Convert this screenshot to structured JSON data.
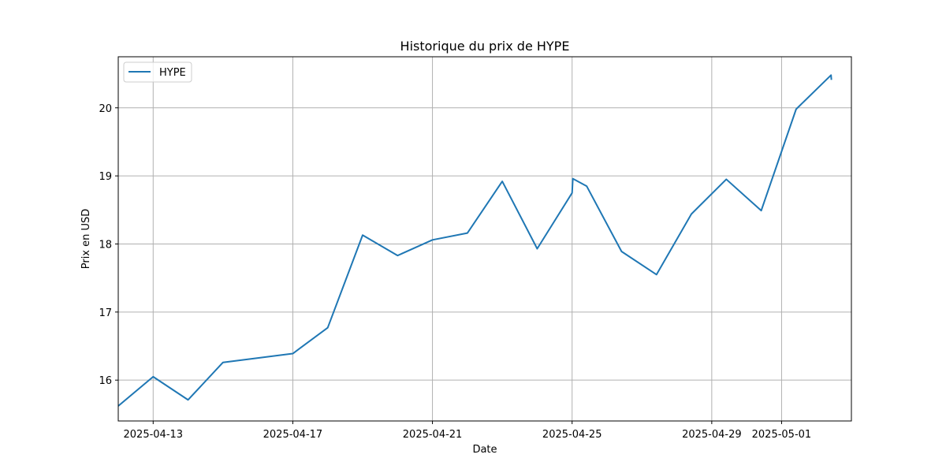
{
  "chart_data": {
    "type": "line",
    "title": "Historique du prix de HYPE",
    "xlabel": "Date",
    "ylabel": "Prix en USD",
    "grid": true,
    "legend_position": "top-left",
    "xlim": [
      "2025-04-12",
      "2025-05-03"
    ],
    "ylim": [
      15.4,
      20.75
    ],
    "x_ticks": [
      "2025-04-13",
      "2025-04-17",
      "2025-04-21",
      "2025-04-25",
      "2025-04-29",
      "2025-05-01"
    ],
    "y_ticks": [
      16,
      17,
      18,
      19,
      20
    ],
    "series": [
      {
        "name": "HYPE",
        "color": "#1f77b4",
        "points": [
          {
            "x": "2025-04-12T00:00",
            "y": 15.62
          },
          {
            "x": "2025-04-13T00:00",
            "y": 16.05
          },
          {
            "x": "2025-04-14T00:00",
            "y": 15.71
          },
          {
            "x": "2025-04-15T00:00",
            "y": 16.26
          },
          {
            "x": "2025-04-17T00:00",
            "y": 16.39
          },
          {
            "x": "2025-04-18T00:00",
            "y": 16.77
          },
          {
            "x": "2025-04-19T00:00",
            "y": 18.13
          },
          {
            "x": "2025-04-20T00:00",
            "y": 17.83
          },
          {
            "x": "2025-04-21T00:00",
            "y": 18.06
          },
          {
            "x": "2025-04-22T00:00",
            "y": 18.16
          },
          {
            "x": "2025-04-23T00:00",
            "y": 18.92
          },
          {
            "x": "2025-04-24T00:00",
            "y": 17.93
          },
          {
            "x": "2025-04-25T00:00",
            "y": 18.75
          },
          {
            "x": "2025-04-25T00:30",
            "y": 18.96
          },
          {
            "x": "2025-04-25T10:00",
            "y": 18.85
          },
          {
            "x": "2025-04-26T10:00",
            "y": 17.89
          },
          {
            "x": "2025-04-27T10:00",
            "y": 17.55
          },
          {
            "x": "2025-04-28T10:00",
            "y": 18.44
          },
          {
            "x": "2025-04-29T10:00",
            "y": 18.95
          },
          {
            "x": "2025-04-30T10:00",
            "y": 18.49
          },
          {
            "x": "2025-05-01T10:00",
            "y": 19.98
          },
          {
            "x": "2025-05-02T10:00",
            "y": 20.48
          },
          {
            "x": "2025-05-02T10:15",
            "y": 20.41
          }
        ]
      }
    ]
  }
}
